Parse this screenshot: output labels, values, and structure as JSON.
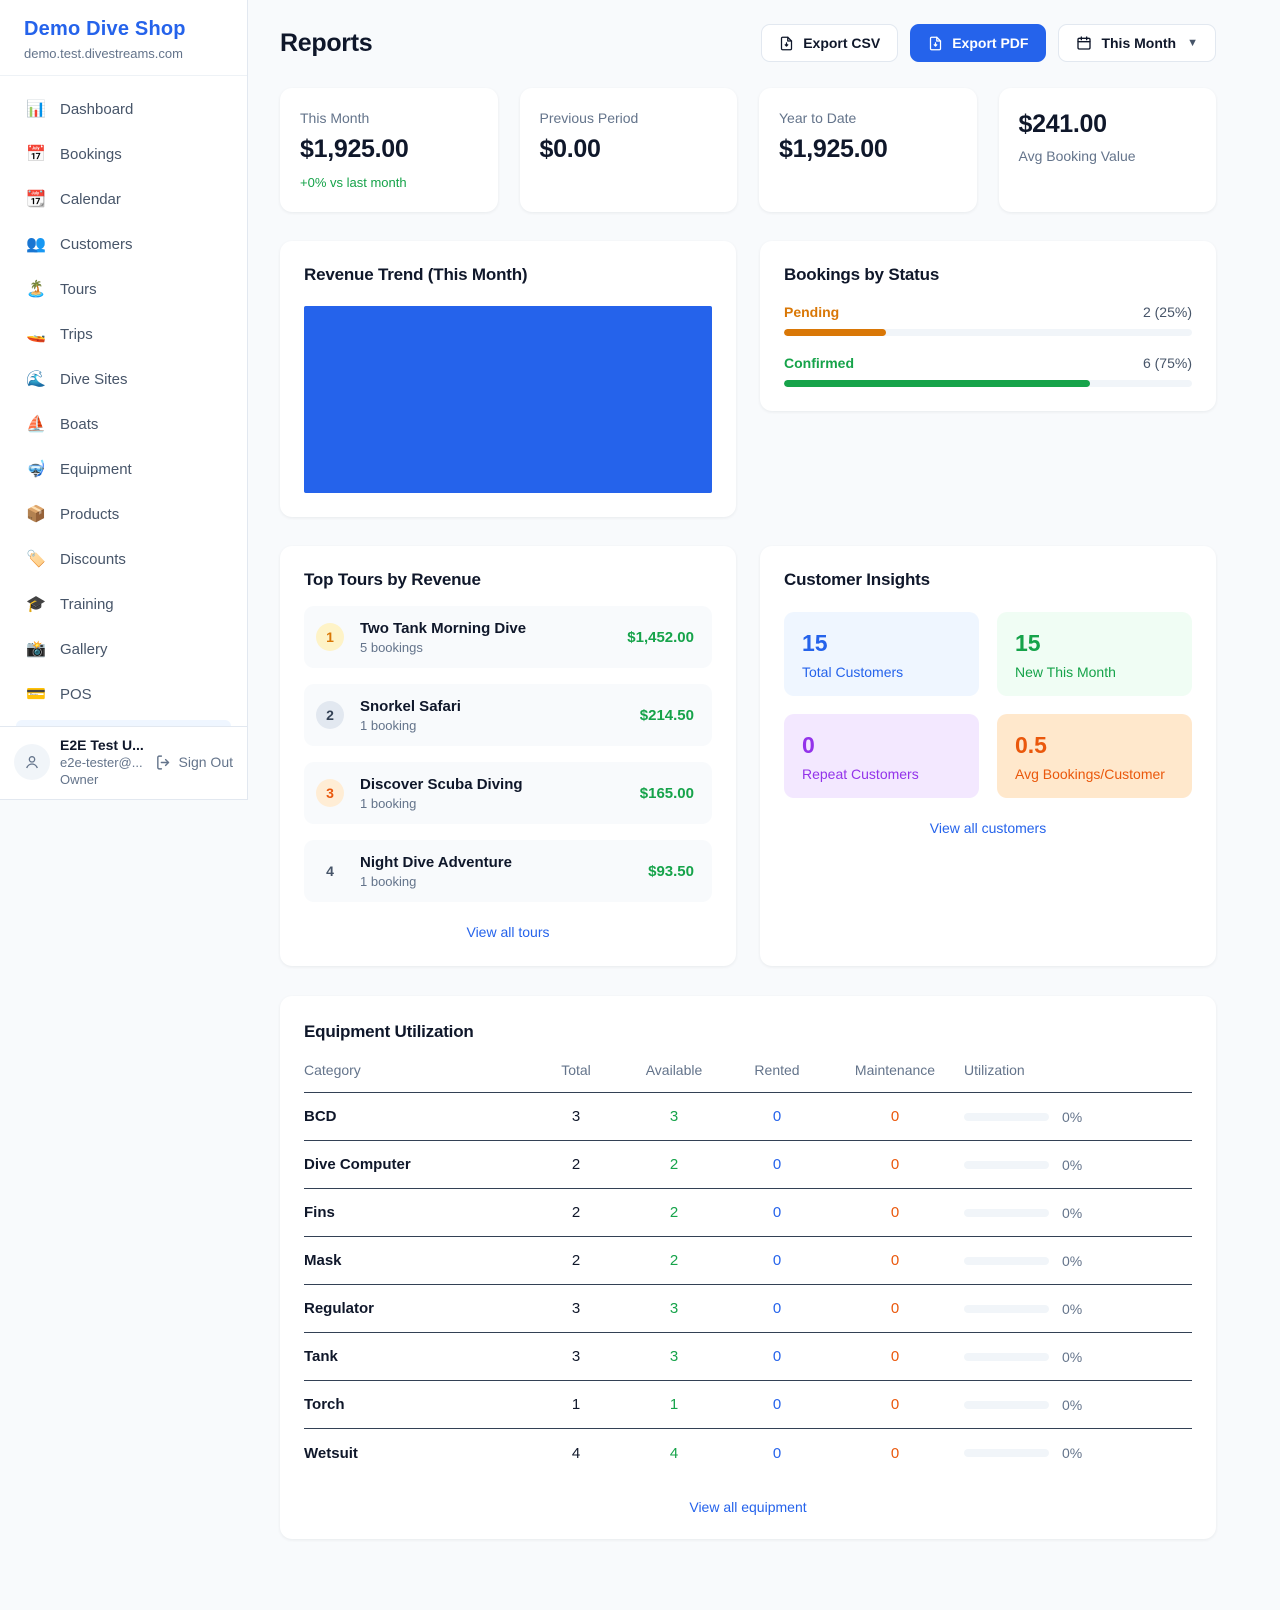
{
  "sidebar": {
    "brand": {
      "name": "Demo Dive Shop",
      "domain": "demo.test.divestreams.com"
    },
    "items": [
      {
        "icon": "📊",
        "label": "Dashboard"
      },
      {
        "icon": "📅",
        "label": "Bookings"
      },
      {
        "icon": "📆",
        "label": "Calendar"
      },
      {
        "icon": "👥",
        "label": "Customers"
      },
      {
        "icon": "🏝️",
        "label": "Tours"
      },
      {
        "icon": "🚤",
        "label": "Trips"
      },
      {
        "icon": "🌊",
        "label": "Dive Sites"
      },
      {
        "icon": "⛵",
        "label": "Boats"
      },
      {
        "icon": "🤿",
        "label": "Equipment"
      },
      {
        "icon": "📦",
        "label": "Products"
      },
      {
        "icon": "🏷️",
        "label": "Discounts"
      },
      {
        "icon": "🎓",
        "label": "Training"
      },
      {
        "icon": "📸",
        "label": "Gallery"
      },
      {
        "icon": "💳",
        "label": "POS"
      }
    ],
    "user": {
      "name": "E2E Test U...",
      "email": "e2e-tester@...",
      "role": "Owner",
      "sign_out": "Sign Out"
    }
  },
  "header": {
    "title": "Reports",
    "export_csv": "Export CSV",
    "export_pdf": "Export PDF",
    "period": "This Month"
  },
  "stats": [
    {
      "label": "This Month",
      "value": "$1,925.00",
      "delta": "+0% vs last month"
    },
    {
      "label": "Previous Period",
      "value": "$0.00"
    },
    {
      "label": "Year to Date",
      "value": "$1,925.00"
    },
    {
      "label": "Avg Booking Value",
      "value": "$241.00"
    }
  ],
  "revenue_trend": {
    "title": "Revenue Trend (This Month)"
  },
  "chart_data": {
    "type": "bar",
    "title": "Revenue Trend (This Month)",
    "categories": [
      "This Month"
    ],
    "values": [
      1925
    ],
    "bar_color": "#2563eb",
    "note": "single full-width solid bar, no axes or labels visible"
  },
  "bookings_by_status": {
    "title": "Bookings by Status",
    "rows": [
      {
        "label": "Pending",
        "count_text": "2 (25%)",
        "pct": 25
      },
      {
        "label": "Confirmed",
        "count_text": "6 (75%)",
        "pct": 75
      }
    ]
  },
  "top_tours": {
    "title": "Top Tours by Revenue",
    "rows": [
      {
        "rank": "1",
        "name": "Two Tank Morning Dive",
        "bookings": "5 bookings",
        "amount": "$1,452.00"
      },
      {
        "rank": "2",
        "name": "Snorkel Safari",
        "bookings": "1 booking",
        "amount": "$214.50"
      },
      {
        "rank": "3",
        "name": "Discover Scuba Diving",
        "bookings": "1 booking",
        "amount": "$165.00"
      },
      {
        "rank": "4",
        "name": "Night Dive Adventure",
        "bookings": "1 booking",
        "amount": "$93.50"
      }
    ],
    "view_all": "View all tours"
  },
  "customer_insights": {
    "title": "Customer Insights",
    "tiles": [
      {
        "value": "15",
        "label": "Total Customers"
      },
      {
        "value": "15",
        "label": "New This Month"
      },
      {
        "value": "0",
        "label": "Repeat Customers"
      },
      {
        "value": "0.5",
        "label": "Avg Bookings/Customer"
      }
    ],
    "view_all": "View all customers"
  },
  "equipment": {
    "title": "Equipment Utilization",
    "columns": {
      "category": "Category",
      "total": "Total",
      "available": "Available",
      "rented": "Rented",
      "maintenance": "Maintenance",
      "utilization": "Utilization"
    },
    "rows": [
      {
        "category": "BCD",
        "total": "3",
        "available": "3",
        "rented": "0",
        "maintenance": "0",
        "utilization": "0%",
        "util_pct": 0
      },
      {
        "category": "Dive Computer",
        "total": "2",
        "available": "2",
        "rented": "0",
        "maintenance": "0",
        "utilization": "0%",
        "util_pct": 0
      },
      {
        "category": "Fins",
        "total": "2",
        "available": "2",
        "rented": "0",
        "maintenance": "0",
        "utilization": "0%",
        "util_pct": 0
      },
      {
        "category": "Mask",
        "total": "2",
        "available": "2",
        "rented": "0",
        "maintenance": "0",
        "utilization": "0%",
        "util_pct": 0
      },
      {
        "category": "Regulator",
        "total": "3",
        "available": "3",
        "rented": "0",
        "maintenance": "0",
        "utilization": "0%",
        "util_pct": 0
      },
      {
        "category": "Tank",
        "total": "3",
        "available": "3",
        "rented": "0",
        "maintenance": "0",
        "utilization": "0%",
        "util_pct": 0
      },
      {
        "category": "Torch",
        "total": "1",
        "available": "1",
        "rented": "0",
        "maintenance": "0",
        "utilization": "0%",
        "util_pct": 0
      },
      {
        "category": "Wetsuit",
        "total": "4",
        "available": "4",
        "rented": "0",
        "maintenance": "0",
        "utilization": "0%",
        "util_pct": 0
      }
    ],
    "view_all": "View all equipment"
  },
  "colors": {
    "accent_blue": "#2563eb",
    "green": "#16a34a",
    "pending_orange": "#d97706",
    "maintenance_orange": "#ea580c",
    "purple": "#9333ea"
  }
}
